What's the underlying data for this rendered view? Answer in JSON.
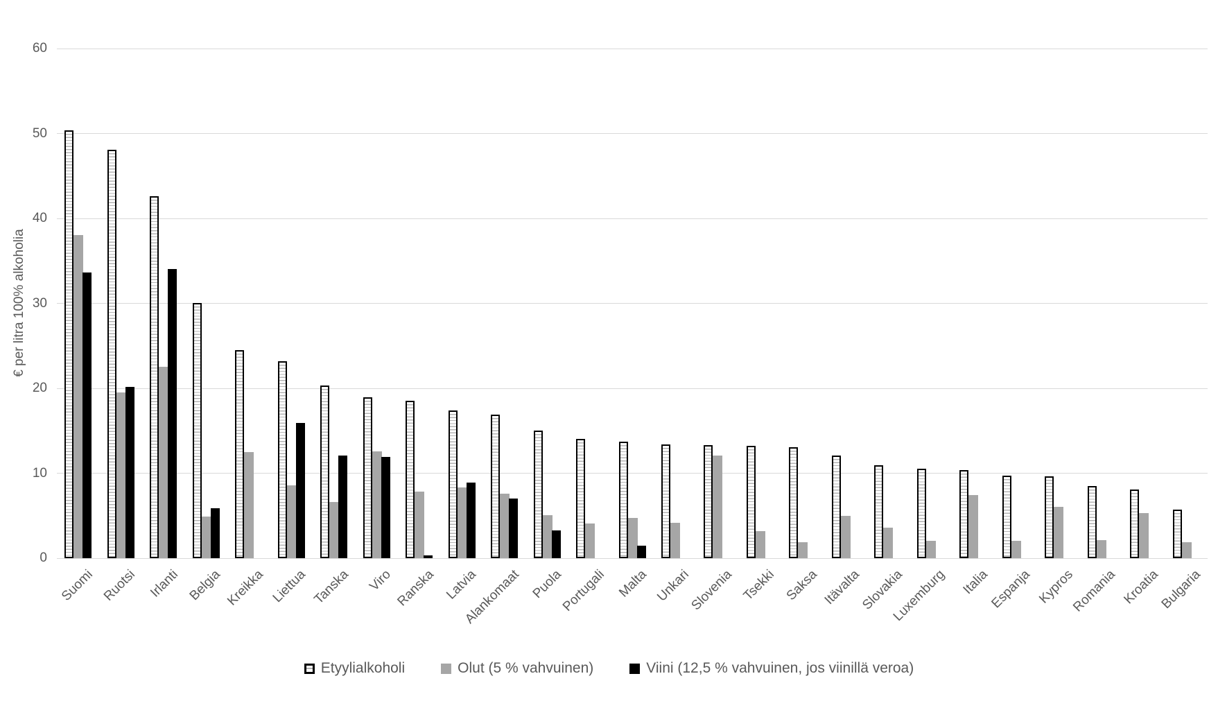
{
  "chart_data": {
    "type": "bar",
    "title": "",
    "xlabel": "",
    "ylabel": "€ per litra 100% alkoholia",
    "ylim": [
      0,
      60
    ],
    "ytick_step": 10,
    "ytick_labels": [
      "0",
      "10",
      "20",
      "30",
      "40",
      "50",
      "60"
    ],
    "grid": "horizontal",
    "legend_position": "bottom",
    "categories": [
      "Suomi",
      "Ruotsi",
      "Irlanti",
      "Belgia",
      "Kreikka",
      "Liettua",
      "Tanska",
      "Viro",
      "Ranska",
      "Latvia",
      "Alankomaat",
      "Puola",
      "Portugali",
      "Malta",
      "Unkari",
      "Slovenia",
      "Tsekki",
      "Saksa",
      "Itävalta",
      "Slovakia",
      "Luxemburg",
      "Italia",
      "Espanja",
      "Kypros",
      "Romania",
      "Kroatia",
      "Bulgaria"
    ],
    "series": [
      {
        "name": "Etyylialkoholi",
        "style": "hatched",
        "values": [
          50.4,
          48.1,
          42.6,
          30.0,
          24.5,
          23.2,
          20.3,
          18.9,
          18.5,
          17.4,
          16.9,
          15.0,
          14.0,
          13.7,
          13.4,
          13.3,
          13.2,
          13.1,
          12.1,
          10.9,
          10.5,
          10.4,
          9.7,
          9.6,
          8.5,
          8.1,
          5.7
        ]
      },
      {
        "name": "Olut (5 % vahvuinen)",
        "style": "gray",
        "values": [
          38.0,
          19.5,
          22.5,
          4.9,
          12.5,
          8.6,
          6.6,
          12.6,
          7.8,
          8.3,
          7.6,
          5.1,
          4.1,
          4.7,
          4.2,
          12.1,
          3.2,
          1.9,
          5.0,
          3.6,
          2.0,
          7.4,
          2.0,
          6.0,
          2.1,
          5.3,
          1.9
        ]
      },
      {
        "name": "Viini (12,5 % vahvuinen, jos viinillä veroa)",
        "style": "black",
        "values": [
          33.6,
          20.2,
          34.0,
          5.9,
          0,
          15.9,
          12.1,
          11.9,
          0.3,
          8.9,
          7.0,
          3.3,
          0,
          1.5,
          0,
          0,
          0,
          0,
          0,
          0,
          0,
          0,
          0,
          0,
          0,
          0,
          0
        ]
      }
    ]
  },
  "colors": {
    "bar_gray": "#a6a6a6",
    "bar_black": "#000000",
    "hatch_line": "#b3b3b3",
    "grid_line": "#d9d9d9",
    "text": "#595959",
    "background": "#ffffff"
  }
}
